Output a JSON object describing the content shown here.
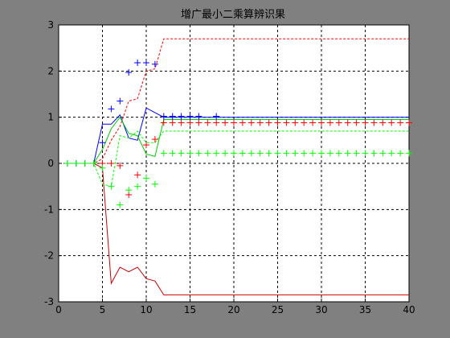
{
  "chart_data": {
    "type": "line",
    "title": "增广最小二乘算辨识果",
    "xlabel": "",
    "ylabel": "",
    "xlim": [
      0,
      40
    ],
    "ylim": [
      -3,
      3
    ],
    "xticks": [
      "0",
      "5",
      "10",
      "15",
      "20",
      "25",
      "30",
      "35",
      "40"
    ],
    "yticks": [
      "3",
      "2",
      "1",
      "0",
      "-1",
      "-2",
      "-3"
    ],
    "grid": true,
    "series": [
      {
        "color": "#0000ff",
        "style": "solid",
        "x": [
          1,
          2,
          3,
          4,
          5,
          6,
          7,
          8,
          9,
          10,
          11,
          12,
          13,
          14,
          15,
          16,
          17,
          18,
          19,
          20,
          21,
          22,
          23,
          24,
          25,
          26,
          27,
          28,
          29,
          30,
          31,
          32,
          33,
          34,
          35,
          36,
          37,
          38,
          39,
          40
        ],
        "values": [
          0,
          0,
          0,
          0,
          0.85,
          0.85,
          1.05,
          0.55,
          0.5,
          1.2,
          1.1,
          1.0,
          1.0,
          1.0,
          1.0,
          1.0,
          1.0,
          1.0,
          1.0,
          1.0,
          1.0,
          1.0,
          1.0,
          1.0,
          1.0,
          1.0,
          1.0,
          1.0,
          1.0,
          1.0,
          1.0,
          1.0,
          1.0,
          1.0,
          1.0,
          1.0,
          1.0,
          1.0,
          1.0,
          1.0
        ]
      },
      {
        "color": "#ff0000",
        "style": "dashed",
        "x": [
          1,
          2,
          3,
          4,
          5,
          6,
          7,
          8,
          9,
          10,
          11,
          12,
          13,
          14,
          15,
          16,
          17,
          18,
          19,
          20,
          21,
          22,
          23,
          24,
          25,
          26,
          27,
          28,
          29,
          30,
          31,
          32,
          33,
          34,
          35,
          36,
          37,
          38,
          39,
          40
        ],
        "values": [
          0,
          0,
          0,
          0,
          0.1,
          0.5,
          0.8,
          1.35,
          1.4,
          2.0,
          2.05,
          2.7,
          2.7,
          2.7,
          2.7,
          2.7,
          2.7,
          2.7,
          2.7,
          2.7,
          2.7,
          2.7,
          2.7,
          2.7,
          2.7,
          2.7,
          2.7,
          2.7,
          2.7,
          2.7,
          2.7,
          2.7,
          2.7,
          2.7,
          2.7,
          2.7,
          2.7,
          2.7,
          2.7,
          2.7
        ]
      },
      {
        "color": "#cc0000",
        "style": "solid",
        "x": [
          1,
          2,
          3,
          4,
          5,
          6,
          7,
          8,
          9,
          10,
          11,
          12,
          13,
          14,
          15,
          16,
          17,
          18,
          19,
          20,
          21,
          22,
          23,
          24,
          25,
          26,
          27,
          28,
          29,
          30,
          31,
          32,
          33,
          34,
          35,
          36,
          37,
          38,
          39,
          40
        ],
        "values": [
          0,
          0,
          0,
          0,
          -0.1,
          -2.6,
          -2.25,
          -2.35,
          -2.25,
          -2.5,
          -2.55,
          -2.85,
          -2.85,
          -2.85,
          -2.85,
          -2.85,
          -2.85,
          -2.85,
          -2.85,
          -2.85,
          -2.85,
          -2.85,
          -2.85,
          -2.85,
          -2.85,
          -2.85,
          -2.85,
          -2.85,
          -2.85,
          -2.85,
          -2.85,
          -2.85,
          -2.85,
          -2.85,
          -2.85,
          -2.85,
          -2.85,
          -2.85,
          -2.85,
          -2.85
        ]
      },
      {
        "color": "#00cc00",
        "style": "solid",
        "x": [
          1,
          2,
          3,
          4,
          5,
          6,
          7,
          8,
          9,
          10,
          11,
          12,
          13,
          14,
          15,
          16,
          17,
          18,
          19,
          20,
          21,
          22,
          23,
          24,
          25,
          26,
          27,
          28,
          29,
          30,
          31,
          32,
          33,
          34,
          35,
          36,
          37,
          38,
          39,
          40
        ],
        "values": [
          0,
          0,
          0,
          0,
          0.3,
          0.75,
          1.0,
          0.65,
          0.6,
          0.2,
          0.15,
          0.95,
          0.95,
          0.95,
          0.95,
          0.95,
          0.95,
          0.95,
          0.95,
          0.95,
          0.95,
          0.95,
          0.95,
          0.95,
          0.95,
          0.95,
          0.95,
          0.95,
          0.95,
          0.95,
          0.95,
          0.95,
          0.95,
          0.95,
          0.95,
          0.95,
          0.95,
          0.95,
          0.95,
          0.95
        ]
      },
      {
        "color": "#00ff00",
        "style": "dashed",
        "x": [
          1,
          2,
          3,
          4,
          5,
          6,
          7,
          8,
          9,
          10,
          11,
          12,
          13,
          14,
          15,
          16,
          17,
          18,
          19,
          20,
          21,
          22,
          23,
          24,
          25,
          26,
          27,
          28,
          29,
          30,
          31,
          32,
          33,
          34,
          35,
          36,
          37,
          38,
          39,
          40
        ],
        "values": [
          0,
          0,
          0,
          0,
          -0.45,
          -0.5,
          0.6,
          0.55,
          0.7,
          0.45,
          0.45,
          0.7,
          0.7,
          0.7,
          0.7,
          0.7,
          0.7,
          0.7,
          0.7,
          0.7,
          0.7,
          0.7,
          0.7,
          0.7,
          0.7,
          0.7,
          0.7,
          0.7,
          0.7,
          0.7,
          0.7,
          0.7,
          0.7,
          0.7,
          0.7,
          0.7,
          0.7,
          0.7,
          0.7,
          0.7
        ]
      },
      {
        "color": "#0000ff",
        "style": "plus",
        "x": [
          1,
          2,
          3,
          4,
          5,
          6,
          7,
          8,
          9,
          10,
          11,
          12,
          13,
          14,
          15,
          16,
          18
        ],
        "values": [
          0,
          0,
          0,
          0,
          0.45,
          1.18,
          1.35,
          1.97,
          2.18,
          2.18,
          2.15,
          1.02,
          1.02,
          1.02,
          1.02,
          1.02,
          1.02
        ]
      },
      {
        "color": "#ff0000",
        "style": "plus",
        "x": [
          5,
          6,
          7,
          8,
          9,
          10,
          11,
          12,
          13,
          14,
          15,
          16,
          17,
          18,
          19,
          20,
          21,
          22,
          23,
          24,
          25,
          26,
          27,
          28,
          29,
          30,
          31,
          32,
          33,
          34,
          35,
          36,
          37,
          38,
          39,
          40
        ],
        "values": [
          0,
          0,
          -0.05,
          -0.68,
          -0.25,
          0.4,
          0.52,
          0.88,
          0.88,
          0.88,
          0.88,
          0.88,
          0.88,
          0.88,
          0.88,
          0.88,
          0.88,
          0.88,
          0.88,
          0.88,
          0.88,
          0.88,
          0.88,
          0.88,
          0.88,
          0.88,
          0.88,
          0.88,
          0.88,
          0.88,
          0.88,
          0.88,
          0.88,
          0.88,
          0.88,
          0.88
        ]
      },
      {
        "color": "#00ff00",
        "style": "plus",
        "x": [
          1,
          2,
          3,
          4,
          5,
          6,
          7,
          8,
          9,
          10,
          11,
          12,
          13,
          14,
          15,
          16,
          17,
          18,
          19,
          20,
          21,
          22,
          23,
          24,
          25,
          26,
          27,
          28,
          29,
          30,
          31,
          32,
          33,
          34,
          35,
          36,
          37,
          38,
          39,
          40
        ],
        "values": [
          0,
          0,
          0,
          0,
          -0.1,
          -0.5,
          -0.9,
          -0.58,
          -0.5,
          -0.32,
          -0.45,
          0.22,
          0.22,
          0.22,
          0.22,
          0.22,
          0.22,
          0.22,
          0.22,
          0.22,
          0.22,
          0.22,
          0.22,
          0.22,
          0.22,
          0.22,
          0.22,
          0.22,
          0.22,
          0.22,
          0.22,
          0.22,
          0.22,
          0.22,
          0.22,
          0.22,
          0.22,
          0.22,
          0.22,
          0.22
        ]
      }
    ]
  }
}
